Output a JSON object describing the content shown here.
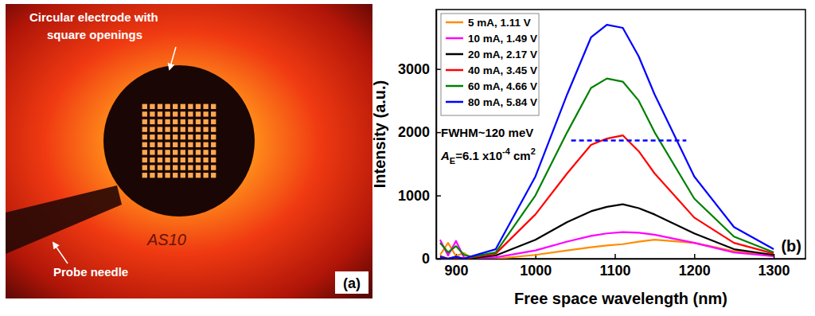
{
  "chart_data": {
    "type": "line",
    "panel_label": "(b)",
    "x_label": "Free space wavelength (nm)",
    "y_label": "Intensity (a.u.)",
    "x": [
      880,
      890,
      900,
      910,
      920,
      950,
      1000,
      1040,
      1070,
      1090,
      1110,
      1130,
      1150,
      1200,
      1250,
      1300
    ],
    "series": [
      {
        "name": "5 mA, 1.11 V",
        "color": "#ff8c00",
        "values": [
          60,
          250,
          40,
          90,
          0,
          0,
          60,
          130,
          180,
          210,
          230,
          270,
          300,
          250,
          120,
          60
        ]
      },
      {
        "name": "10 mA, 1.49 V",
        "color": "#ff00ff",
        "values": [
          300,
          50,
          280,
          20,
          0,
          20,
          130,
          270,
          360,
          400,
          420,
          410,
          380,
          250,
          100,
          40
        ]
      },
      {
        "name": "20 mA, 2.17 V",
        "color": "#000000",
        "values": [
          40,
          0,
          30,
          0,
          10,
          50,
          300,
          580,
          750,
          820,
          860,
          800,
          700,
          400,
          150,
          60
        ]
      },
      {
        "name": "40 mA, 3.45 V",
        "color": "#ff0000",
        "values": [
          30,
          0,
          20,
          0,
          20,
          80,
          700,
          1350,
          1800,
          1900,
          1950,
          1700,
          1350,
          650,
          250,
          80
        ]
      },
      {
        "name": "60 mA, 4.66 V",
        "color": "#008000",
        "values": [
          250,
          100,
          200,
          60,
          30,
          100,
          1000,
          2000,
          2700,
          2850,
          2800,
          2500,
          2000,
          950,
          350,
          100
        ]
      },
      {
        "name": "80 mA, 5.84 V",
        "color": "#0000ff",
        "values": [
          20,
          0,
          30,
          0,
          40,
          150,
          1300,
          2600,
          3500,
          3700,
          3650,
          3200,
          2600,
          1300,
          500,
          150
        ]
      }
    ],
    "xlim": [
      875,
      1340
    ],
    "xticks": [
      900,
      1000,
      1100,
      1200,
      1300
    ],
    "ylim": [
      0,
      3940
    ],
    "yticks": [
      0,
      1000,
      2000,
      3000
    ],
    "grid": false,
    "legend": "upper-left",
    "fwhm_line": {
      "x": [
        1045,
        1190
      ],
      "y": 1870,
      "color": "#0000ff",
      "line_style": "dashed"
    },
    "annotations": [
      {
        "segments": [
          {
            "text": "FWHM~120 meV",
            "style": "normal"
          }
        ]
      },
      {
        "segments": [
          {
            "text": "A",
            "style": "italic"
          },
          {
            "text": "E",
            "style": "subscript"
          },
          {
            "text": "=6.1 x10",
            "style": "normal"
          },
          {
            "text": "-4",
            "style": "superscript"
          },
          {
            "text": " cm",
            "style": "normal"
          },
          {
            "text": "2",
            "style": "superscript"
          }
        ]
      }
    ]
  },
  "panel_a": {
    "panel_label": "(a)",
    "electrode_label": [
      "Circular electrode with",
      "square openings"
    ],
    "needle_label": "Probe needle",
    "sample_mark": "AS10",
    "openings_per_side": 10
  }
}
